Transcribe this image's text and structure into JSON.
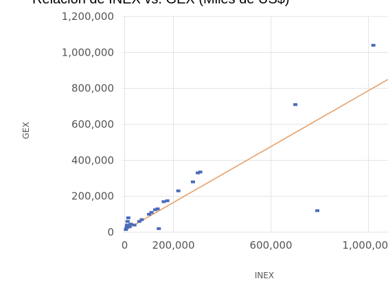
{
  "chart_data": {
    "type": "scatter",
    "title": "Relación de INEX vs. GEX (Miles de US$)",
    "xlabel": "INEX",
    "ylabel": "GEX",
    "xlim": [
      -10000,
      1080000
    ],
    "ylim": [
      0,
      1200000
    ],
    "x_ticks": [
      0,
      200000,
      600000,
      1000000
    ],
    "x_tick_labels": [
      "0",
      "200,000",
      "600,000",
      "1,000,000"
    ],
    "y_ticks": [
      0,
      200000,
      400000,
      600000,
      800000,
      1000000,
      1200000
    ],
    "y_tick_labels": [
      "0",
      "200,000",
      "400,000",
      "600,000",
      "800,000",
      "1,000,000",
      "1,200,000"
    ],
    "grid": true,
    "colors": {
      "points": "#4a6bb8",
      "trendline": "#e6a06a"
    },
    "series": [
      {
        "points": [
          [
            5000,
            15000
          ],
          [
            8000,
            25000
          ],
          [
            10000,
            40000
          ],
          [
            12000,
            60000
          ],
          [
            15000,
            80000
          ],
          [
            20000,
            30000
          ],
          [
            25000,
            45000
          ],
          [
            40000,
            40000
          ],
          [
            60000,
            60000
          ],
          [
            70000,
            70000
          ],
          [
            100000,
            100000
          ],
          [
            110000,
            110000
          ],
          [
            125000,
            125000
          ],
          [
            135000,
            130000
          ],
          [
            140000,
            20000
          ],
          [
            160000,
            170000
          ],
          [
            175000,
            175000
          ],
          [
            220000,
            230000
          ],
          [
            280000,
            280000
          ],
          [
            300000,
            330000
          ],
          [
            310000,
            335000
          ],
          [
            700000,
            710000
          ],
          [
            790000,
            120000
          ],
          [
            1020000,
            1040000
          ]
        ]
      }
    ],
    "trendline": {
      "type": "linear",
      "x": [
        0,
        1080000
      ],
      "y": [
        10000,
        850000
      ]
    }
  }
}
